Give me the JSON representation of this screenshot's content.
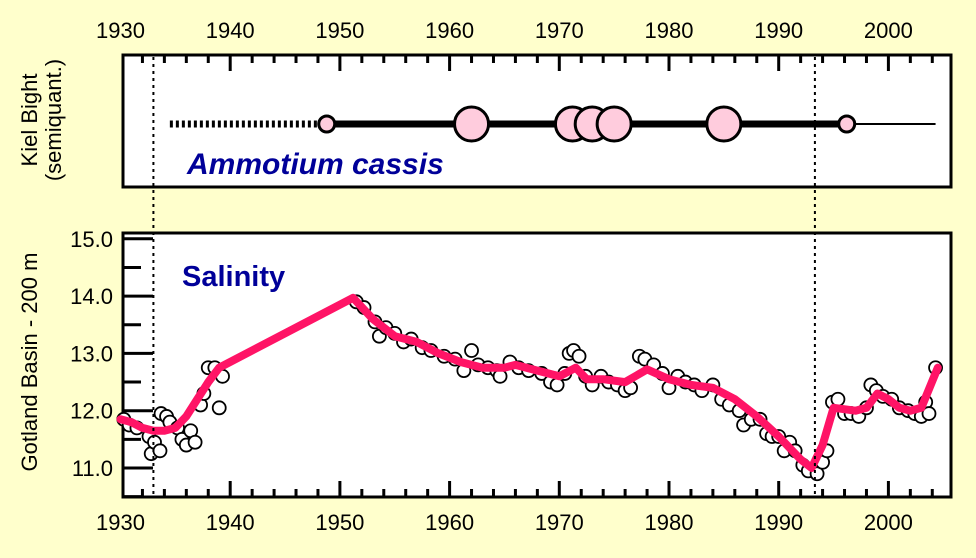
{
  "chart_data": [
    {
      "type": "timeline",
      "panel": "top",
      "ylabel_line1": "Kiel Bight",
      "ylabel_line2": "(semiquant.)",
      "label": "Ammotium cassis",
      "xlim": [
        1930,
        2005.5
      ],
      "xticks": [
        1930,
        1940,
        1950,
        1960,
        1970,
        1980,
        1990,
        2000
      ],
      "xtick_labels": [
        "1930",
        "1940",
        "1950",
        "1960",
        "1970",
        "1980",
        "1990",
        "2000"
      ],
      "dotted_segment": [
        1934.5,
        1948
      ],
      "thick_segment": [
        1948.8,
        1996.2
      ],
      "thin_segment": [
        1996.2,
        2004.3
      ],
      "occurrences": [
        {
          "year": 1948.8,
          "abundance": "small"
        },
        {
          "year": 1962.0,
          "abundance": "large"
        },
        {
          "year": 1971.2,
          "abundance": "large"
        },
        {
          "year": 1973.0,
          "abundance": "large"
        },
        {
          "year": 1975.0,
          "abundance": "large"
        },
        {
          "year": 1985.0,
          "abundance": "large"
        },
        {
          "year": 1996.2,
          "abundance": "small"
        }
      ],
      "colors": {
        "marker_fill": "#FFCCDD",
        "label": "#000099"
      }
    },
    {
      "type": "line",
      "panel": "bottom",
      "ylabel": "Gotland Basin - 200 m",
      "label": "Salinity",
      "xlim": [
        1930,
        2005.5
      ],
      "ylim": [
        10.5,
        15.0
      ],
      "yticks": [
        11.0,
        12.0,
        13.0,
        14.0,
        15.0
      ],
      "ytick_labels": [
        "11.0",
        "12.0",
        "13.0",
        "14.0",
        "15.0"
      ],
      "xticks": [
        1930,
        1940,
        1950,
        1960,
        1970,
        1980,
        1990,
        2000
      ],
      "xtick_labels": [
        "1930",
        "1940",
        "1950",
        "1960",
        "1970",
        "1980",
        "1990",
        "2000"
      ],
      "reference_lines": [
        1933,
        1993.3
      ],
      "smoothed": {
        "x": [
          1930,
          1931,
          1932,
          1933,
          1934,
          1935,
          1936,
          1937,
          1938,
          1939,
          1951.2,
          1953,
          1955,
          1957,
          1959,
          1961,
          1963,
          1965,
          1966,
          1968,
          1970,
          1971.5,
          1972.5,
          1974,
          1976,
          1978,
          1980,
          1982,
          1984,
          1986,
          1988,
          1990,
          1992,
          1993,
          1994,
          1995,
          1997,
          1998,
          1999,
          2000,
          2001,
          2002,
          2003,
          2004.5
        ],
        "y": [
          11.85,
          11.8,
          11.7,
          11.65,
          11.65,
          11.7,
          11.9,
          12.2,
          12.5,
          12.75,
          13.97,
          13.6,
          13.3,
          13.2,
          13.0,
          12.85,
          12.75,
          12.75,
          12.8,
          12.7,
          12.6,
          12.75,
          12.55,
          12.55,
          12.5,
          12.72,
          12.55,
          12.45,
          12.4,
          12.2,
          11.9,
          11.55,
          11.15,
          11.0,
          11.4,
          12.05,
          12.0,
          12.05,
          12.3,
          12.2,
          12.05,
          12.0,
          12.05,
          12.75
        ]
      },
      "observations": [
        [
          1930.3,
          11.85
        ],
        [
          1930.8,
          11.75
        ],
        [
          1931.5,
          11.7
        ],
        [
          1932.6,
          11.55
        ],
        [
          1932.8,
          11.25
        ],
        [
          1933.1,
          11.45
        ],
        [
          1933.6,
          11.3
        ],
        [
          1933.7,
          11.95
        ],
        [
          1934.2,
          11.9
        ],
        [
          1934.5,
          11.8
        ],
        [
          1935.2,
          11.7
        ],
        [
          1935.6,
          11.5
        ],
        [
          1936.0,
          11.4
        ],
        [
          1936.4,
          11.65
        ],
        [
          1936.8,
          11.45
        ],
        [
          1937.3,
          12.1
        ],
        [
          1937.6,
          12.3
        ],
        [
          1938.0,
          12.75
        ],
        [
          1938.6,
          12.75
        ],
        [
          1939.0,
          12.05
        ],
        [
          1939.3,
          12.6
        ],
        [
          1951.5,
          13.9
        ],
        [
          1952.2,
          13.8
        ],
        [
          1953.2,
          13.55
        ],
        [
          1953.6,
          13.3
        ],
        [
          1954.2,
          13.45
        ],
        [
          1955.0,
          13.35
        ],
        [
          1955.8,
          13.2
        ],
        [
          1956.5,
          13.25
        ],
        [
          1957.5,
          13.1
        ],
        [
          1958.3,
          13.05
        ],
        [
          1959.5,
          12.95
        ],
        [
          1960.5,
          12.9
        ],
        [
          1961.3,
          12.7
        ],
        [
          1962.0,
          13.05
        ],
        [
          1962.6,
          12.8
        ],
        [
          1963.5,
          12.75
        ],
        [
          1964.3,
          12.7
        ],
        [
          1964.6,
          12.6
        ],
        [
          1965.5,
          12.85
        ],
        [
          1966.3,
          12.75
        ],
        [
          1967.2,
          12.7
        ],
        [
          1968.4,
          12.65
        ],
        [
          1969.2,
          12.5
        ],
        [
          1969.8,
          12.45
        ],
        [
          1970.5,
          12.65
        ],
        [
          1970.9,
          13.0
        ],
        [
          1971.3,
          13.05
        ],
        [
          1971.8,
          12.95
        ],
        [
          1972.4,
          12.6
        ],
        [
          1973.0,
          12.45
        ],
        [
          1973.8,
          12.6
        ],
        [
          1974.5,
          12.5
        ],
        [
          1975.3,
          12.45
        ],
        [
          1976.0,
          12.35
        ],
        [
          1976.5,
          12.4
        ],
        [
          1977.3,
          12.95
        ],
        [
          1977.8,
          12.9
        ],
        [
          1978.6,
          12.8
        ],
        [
          1979.4,
          12.65
        ],
        [
          1980.0,
          12.4
        ],
        [
          1980.8,
          12.6
        ],
        [
          1981.5,
          12.5
        ],
        [
          1982.3,
          12.45
        ],
        [
          1983.0,
          12.35
        ],
        [
          1984.0,
          12.45
        ],
        [
          1984.8,
          12.2
        ],
        [
          1985.5,
          12.1
        ],
        [
          1986.4,
          12.0
        ],
        [
          1986.8,
          11.75
        ],
        [
          1987.5,
          11.85
        ],
        [
          1988.3,
          11.85
        ],
        [
          1988.9,
          11.6
        ],
        [
          1989.4,
          11.55
        ],
        [
          1990.0,
          11.55
        ],
        [
          1990.5,
          11.3
        ],
        [
          1991.0,
          11.45
        ],
        [
          1991.5,
          11.3
        ],
        [
          1992.2,
          11.05
        ],
        [
          1992.7,
          10.95
        ],
        [
          1993.5,
          10.9
        ],
        [
          1994.0,
          11.1
        ],
        [
          1994.4,
          11.3
        ],
        [
          1994.9,
          12.15
        ],
        [
          1995.4,
          12.2
        ],
        [
          1996.0,
          11.95
        ],
        [
          1996.6,
          11.95
        ],
        [
          1997.3,
          11.9
        ],
        [
          1998.0,
          12.05
        ],
        [
          1998.4,
          12.45
        ],
        [
          1998.9,
          12.35
        ],
        [
          1999.5,
          12.25
        ],
        [
          2000.3,
          12.2
        ],
        [
          2001.0,
          12.05
        ],
        [
          2001.8,
          12.0
        ],
        [
          2002.4,
          11.95
        ],
        [
          2003.0,
          11.9
        ],
        [
          2003.4,
          12.15
        ],
        [
          2003.7,
          11.95
        ],
        [
          2004.3,
          12.75
        ]
      ],
      "colors": {
        "line": "#FF1466",
        "marker_fill": "#FFFFFF",
        "label": "#000099"
      }
    }
  ]
}
